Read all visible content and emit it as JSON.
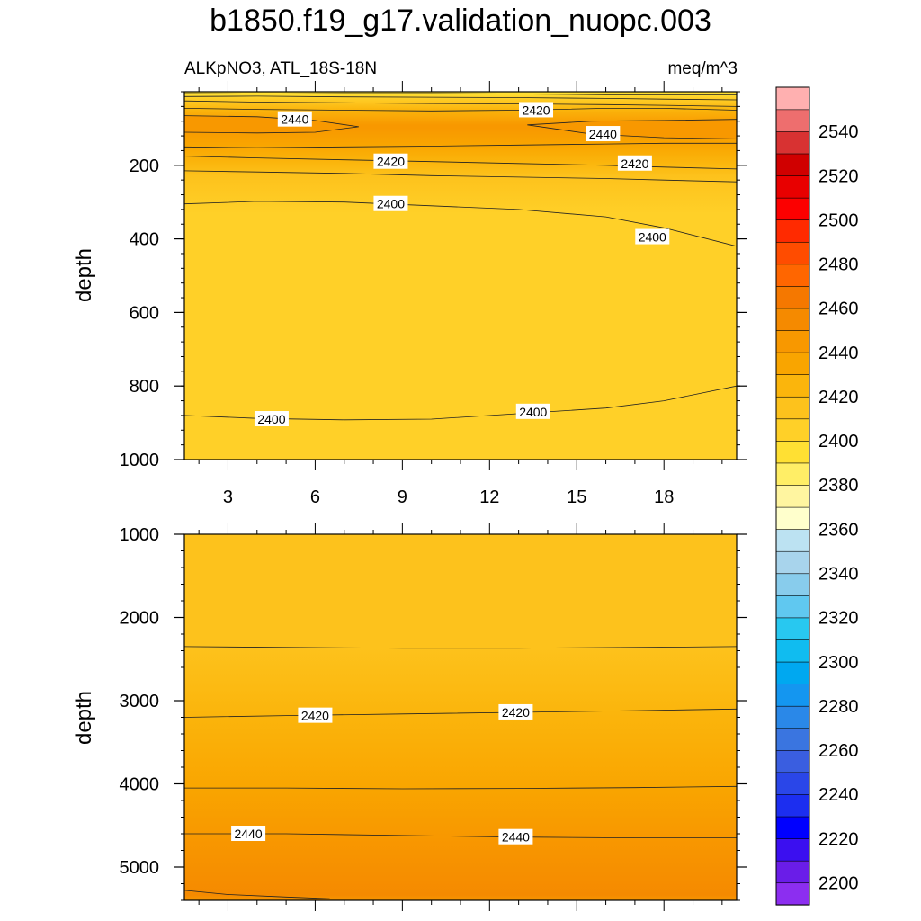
{
  "chart_data": {
    "type": "contour",
    "title": "b1850.f19_g17.validation_nuopc.003",
    "variable_label": "ALKpNO3, ATL_18S-18N",
    "units": "meq/m^3",
    "xlabel": "",
    "x_ticks": [
      3,
      6,
      9,
      12,
      15,
      18
    ],
    "xlim": [
      1.5,
      20.5
    ],
    "panels": [
      {
        "name": "upper",
        "ylabel": "depth",
        "ylim": [
          0,
          1000
        ],
        "y_ticks": [
          200,
          400,
          600,
          800,
          1000
        ],
        "contour_lines": [
          {
            "level": 2390,
            "x": [
              1.5,
              4,
              7,
              10,
              13,
              16,
              18,
              20.5
            ],
            "depth": [
              5,
              6,
              5,
              5,
              6,
              8,
              8,
              8
            ],
            "labels": []
          },
          {
            "level": 2400,
            "x": [
              1.5,
              4,
              7,
              10,
              13,
              16,
              18,
              20.5
            ],
            "depth": [
              13,
              12,
              14,
              15,
              16,
              18,
              20,
              22
            ],
            "labels": []
          },
          {
            "level": 2410,
            "x": [
              1.5,
              4,
              7,
              10,
              13,
              16,
              18,
              20.5
            ],
            "depth": [
              25,
              28,
              30,
              32,
              33,
              35,
              37,
              40
            ],
            "labels": []
          },
          {
            "level": 2420,
            "x": [
              1.5,
              4,
              7,
              10,
              13,
              16,
              18,
              20.5
            ],
            "depth": [
              45,
              48,
              50,
              52,
              50,
              45,
              45,
              50
            ],
            "labels": [
              {
                "x": 13.6,
                "depth": 50,
                "text": "2420"
              }
            ]
          },
          {
            "level": 2440,
            "x": [
              1.5,
              4,
              6,
              7.5,
              6,
              4,
              1.5
            ],
            "depth": [
              65,
              68,
              78,
              95,
              110,
              112,
              110
            ],
            "labels": [
              {
                "x": 5.3,
                "depth": 75,
                "text": "2440"
              }
            ]
          },
          {
            "level": 2440,
            "x": [
              20.5,
              18,
              15.5,
              13.3,
              15.5,
              18,
              20.5
            ],
            "depth": [
              75,
              78,
              80,
              90,
              115,
              125,
              128
            ],
            "labels": [
              {
                "x": 15.9,
                "depth": 115,
                "text": "2440"
              }
            ]
          },
          {
            "level": 2430,
            "x": [
              1.5,
              4,
              7,
              10,
              13,
              16,
              18,
              20.5
            ],
            "depth": [
              150,
              152,
              150,
              148,
              145,
              142,
              140,
              140
            ],
            "labels": []
          },
          {
            "level": 2420,
            "x": [
              1.5,
              4,
              7,
              10,
              13,
              16,
              18,
              20.5
            ],
            "depth": [
              175,
              180,
              185,
              190,
              195,
              200,
              205,
              210
            ],
            "labels": [
              {
                "x": 8.6,
                "depth": 190,
                "text": "2420"
              },
              {
                "x": 17.0,
                "depth": 195,
                "text": "2420"
              }
            ]
          },
          {
            "level": 2410,
            "x": [
              1.5,
              4,
              7,
              10,
              13,
              16,
              18,
              20.5
            ],
            "depth": [
              215,
              218,
              222,
              228,
              232,
              236,
              240,
              245
            ],
            "labels": []
          },
          {
            "level": 2400,
            "x": [
              1.5,
              4,
              7,
              10,
              13,
              16,
              18,
              20.5
            ],
            "depth": [
              305,
              298,
              300,
              310,
              320,
              340,
              370,
              420
            ],
            "labels": [
              {
                "x": 8.6,
                "depth": 305,
                "text": "2400"
              },
              {
                "x": 17.6,
                "depth": 395,
                "text": "2400"
              }
            ]
          },
          {
            "level": 2400,
            "x": [
              1.5,
              4,
              7,
              10,
              13,
              16,
              18,
              20.5
            ],
            "depth": [
              880,
              888,
              892,
              890,
              875,
              860,
              840,
              800
            ],
            "labels": [
              {
                "x": 4.5,
                "depth": 890,
                "text": "2400"
              },
              {
                "x": 13.5,
                "depth": 870,
                "text": "2400"
              }
            ]
          }
        ]
      },
      {
        "name": "lower",
        "ylabel": "depth",
        "ylim": [
          1000,
          5400
        ],
        "y_ticks": [
          1000,
          2000,
          3000,
          4000,
          5000
        ],
        "contour_lines": [
          {
            "level": 2410,
            "x": [
              1.5,
              5,
              9,
              13,
              17,
              20.5
            ],
            "depth": [
              2350,
              2360,
              2370,
              2370,
              2360,
              2350
            ],
            "labels": []
          },
          {
            "level": 2420,
            "x": [
              1.5,
              5,
              9,
              13,
              17,
              20.5
            ],
            "depth": [
              3200,
              3180,
              3160,
              3140,
              3120,
              3100
            ],
            "labels": [
              {
                "x": 6.0,
                "depth": 3180,
                "text": "2420"
              },
              {
                "x": 12.9,
                "depth": 3140,
                "text": "2420"
              }
            ]
          },
          {
            "level": 2430,
            "x": [
              1.5,
              5,
              9,
              13,
              17,
              20.5
            ],
            "depth": [
              4050,
              4050,
              4060,
              4055,
              4045,
              4030
            ],
            "labels": []
          },
          {
            "level": 2440,
            "x": [
              1.5,
              5,
              9,
              13,
              17,
              20.5
            ],
            "depth": [
              4600,
              4600,
              4620,
              4640,
              4650,
              4650
            ],
            "labels": [
              {
                "x": 3.7,
                "depth": 4600,
                "text": "2440"
              },
              {
                "x": 12.9,
                "depth": 4640,
                "text": "2440"
              }
            ]
          },
          {
            "level": 2450,
            "x": [
              1.5,
              3,
              5,
              6.5
            ],
            "depth": [
              5280,
              5330,
              5360,
              5380
            ],
            "labels": []
          }
        ]
      }
    ],
    "colorbar": {
      "min": 2190,
      "step": 10,
      "colors": [
        "#8c2ef0",
        "#6a1de8",
        "#3b0ff0",
        "#0000ff",
        "#1c2ef0",
        "#2a46e8",
        "#3a5ee0",
        "#3a75e0",
        "#2a88e8",
        "#1496f0",
        "#00a8f0",
        "#10bcf0",
        "#28c8f0",
        "#60c8f0",
        "#88ccec",
        "#a8d4ec",
        "#bce2f2",
        "#ffffcc",
        "#fff5a0",
        "#ffee66",
        "#ffe033",
        "#ffd028",
        "#fdc21c",
        "#fbb50c",
        "#f9a500",
        "#f89800",
        "#f58a00",
        "#f57800",
        "#ff6600",
        "#ff4c00",
        "#ff2a00",
        "#fc0000",
        "#e80000",
        "#d00000",
        "#d83232",
        "#ee6e6e",
        "#ffb0b0"
      ],
      "labels": [
        2200,
        2220,
        2240,
        2260,
        2280,
        2300,
        2320,
        2340,
        2360,
        2380,
        2400,
        2420,
        2440,
        2460,
        2480,
        2500,
        2520,
        2540
      ]
    }
  }
}
